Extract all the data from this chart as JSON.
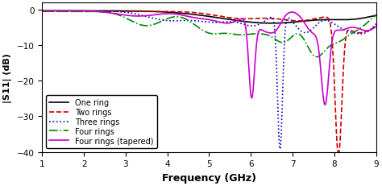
{
  "title": "",
  "xlabel": "Frequency (GHz)",
  "ylabel": "|S11| (dB)",
  "xlim": [
    1,
    9
  ],
  "ylim": [
    -40,
    2
  ],
  "yticks": [
    0,
    -10,
    -20,
    -30,
    -40
  ],
  "xticks": [
    1,
    2,
    3,
    4,
    5,
    6,
    7,
    8,
    9
  ],
  "legend": [
    "One ring",
    "Two rings",
    "Three rings",
    "Four rings",
    "Four rings (tapered)"
  ],
  "colors": [
    "#000000",
    "#cc0000",
    "#0000cc",
    "#008800",
    "#cc00cc"
  ],
  "line_styles": [
    "-",
    "--",
    ":",
    "-."
  ],
  "background": "#ffffff"
}
